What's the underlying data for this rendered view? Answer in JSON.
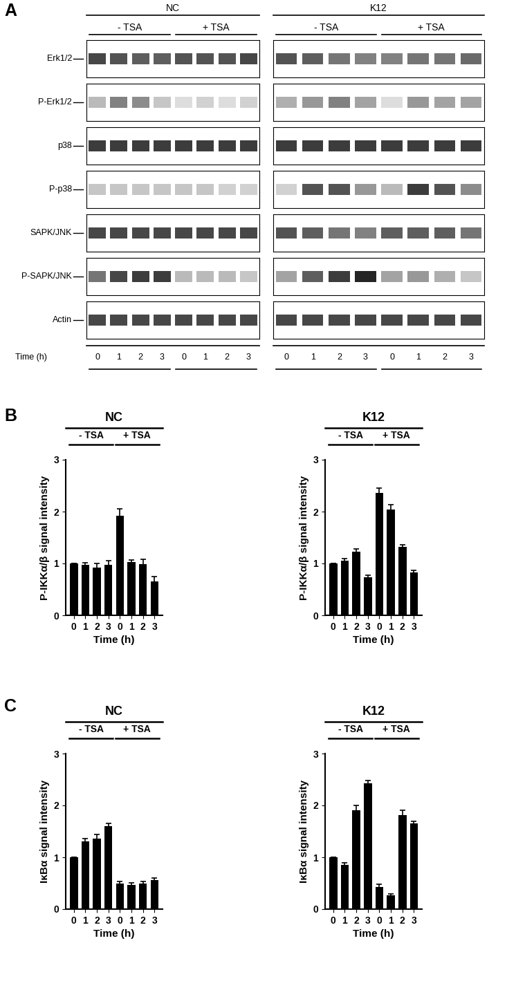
{
  "panel_labels": [
    "A",
    "B",
    "C"
  ],
  "panel_A": {
    "time_label": "Time (h)",
    "lane_times": [
      0,
      1,
      2,
      3,
      0,
      1,
      2,
      3
    ],
    "treatments": [
      "- TSA",
      "+ TSA"
    ],
    "rows": [
      "Erk1/2",
      "P-Erk1/2",
      "p38",
      "P-p38",
      "SAPK/JNK",
      "P-SAPK/JNK",
      "Actin"
    ],
    "blots": [
      {
        "group": "NC",
        "band_intensity": [
          [
            0.8,
            0.75,
            0.7,
            0.7,
            0.75,
            0.75,
            0.75,
            0.8
          ],
          [
            0.3,
            0.55,
            0.5,
            0.25,
            0.15,
            0.2,
            0.15,
            0.2
          ],
          [
            0.85,
            0.85,
            0.85,
            0.85,
            0.85,
            0.85,
            0.85,
            0.85
          ],
          [
            0.25,
            0.25,
            0.25,
            0.25,
            0.25,
            0.25,
            0.2,
            0.2
          ],
          [
            0.8,
            0.8,
            0.8,
            0.8,
            0.8,
            0.8,
            0.8,
            0.8
          ],
          [
            0.6,
            0.8,
            0.85,
            0.85,
            0.3,
            0.3,
            0.3,
            0.25
          ],
          [
            0.8,
            0.8,
            0.8,
            0.8,
            0.8,
            0.8,
            0.8,
            0.8
          ]
        ]
      },
      {
        "group": "K12",
        "band_intensity": [
          [
            0.75,
            0.7,
            0.6,
            0.55,
            0.55,
            0.6,
            0.6,
            0.65
          ],
          [
            0.35,
            0.45,
            0.55,
            0.4,
            0.15,
            0.45,
            0.4,
            0.4
          ],
          [
            0.85,
            0.85,
            0.85,
            0.85,
            0.85,
            0.85,
            0.85,
            0.85
          ],
          [
            0.2,
            0.75,
            0.75,
            0.45,
            0.3,
            0.85,
            0.75,
            0.5
          ],
          [
            0.75,
            0.7,
            0.6,
            0.55,
            0.7,
            0.7,
            0.7,
            0.6
          ],
          [
            0.4,
            0.7,
            0.85,
            0.95,
            0.4,
            0.45,
            0.35,
            0.25
          ],
          [
            0.8,
            0.8,
            0.8,
            0.8,
            0.8,
            0.8,
            0.8,
            0.8
          ]
        ]
      }
    ]
  },
  "chart_data": [
    {
      "type": "bar",
      "title": "NC",
      "ylabel": "P-IKKα/β signal intensity",
      "xlabel": "Time (h)",
      "categories": [
        "0",
        "1",
        "2",
        "3",
        "0",
        "1",
        "2",
        "3"
      ],
      "groups": [
        "- TSA",
        "+ TSA"
      ],
      "values": [
        1.0,
        0.98,
        0.92,
        0.97,
        1.92,
        1.03,
        0.99,
        0.66
      ],
      "errors": [
        0,
        0.04,
        0.08,
        0.08,
        0.13,
        0.04,
        0.09,
        0.09
      ],
      "color": "#000000",
      "ylim": [
        0,
        3
      ],
      "yticks": [
        0,
        1,
        2,
        3
      ]
    },
    {
      "type": "bar",
      "title": "K12",
      "ylabel": "P-IKKα/β signal intensity",
      "xlabel": "Time (h)",
      "categories": [
        "0",
        "1",
        "2",
        "3",
        "0",
        "1",
        "2",
        "3"
      ],
      "groups": [
        "- TSA",
        "+ TSA"
      ],
      "values": [
        1.0,
        1.06,
        1.23,
        0.74,
        2.36,
        2.04,
        1.32,
        0.83
      ],
      "errors": [
        0,
        0.04,
        0.05,
        0.04,
        0.09,
        0.09,
        0.04,
        0.04
      ],
      "color": "#000000",
      "ylim": [
        0,
        3
      ],
      "yticks": [
        0,
        1,
        2,
        3
      ]
    },
    {
      "type": "bar",
      "title": "NC",
      "ylabel": "IκBα signal intensity",
      "xlabel": "Time (h)",
      "categories": [
        "0",
        "1",
        "2",
        "3",
        "0",
        "1",
        "2",
        "3"
      ],
      "groups": [
        "- TSA",
        "+ TSA"
      ],
      "values": [
        1.0,
        1.31,
        1.36,
        1.6,
        0.5,
        0.47,
        0.5,
        0.56
      ],
      "errors": [
        0,
        0.05,
        0.08,
        0.05,
        0.04,
        0.04,
        0.04,
        0.04
      ],
      "color": "#000000",
      "ylim": [
        0,
        3
      ],
      "yticks": [
        0,
        1,
        2,
        3
      ]
    },
    {
      "type": "bar",
      "title": "K12",
      "ylabel": "IκBα signal intensity",
      "xlabel": "Time (h)",
      "categories": [
        "0",
        "1",
        "2",
        "3",
        "0",
        "1",
        "2",
        "3"
      ],
      "groups": [
        "- TSA",
        "+ TSA"
      ],
      "values": [
        1.0,
        0.86,
        1.91,
        2.43,
        0.43,
        0.27,
        1.82,
        1.66
      ],
      "errors": [
        0,
        0.04,
        0.09,
        0.05,
        0.05,
        0.03,
        0.09,
        0.04
      ],
      "color": "#000000",
      "ylim": [
        0,
        3
      ],
      "yticks": [
        0,
        1,
        2,
        3
      ]
    }
  ]
}
